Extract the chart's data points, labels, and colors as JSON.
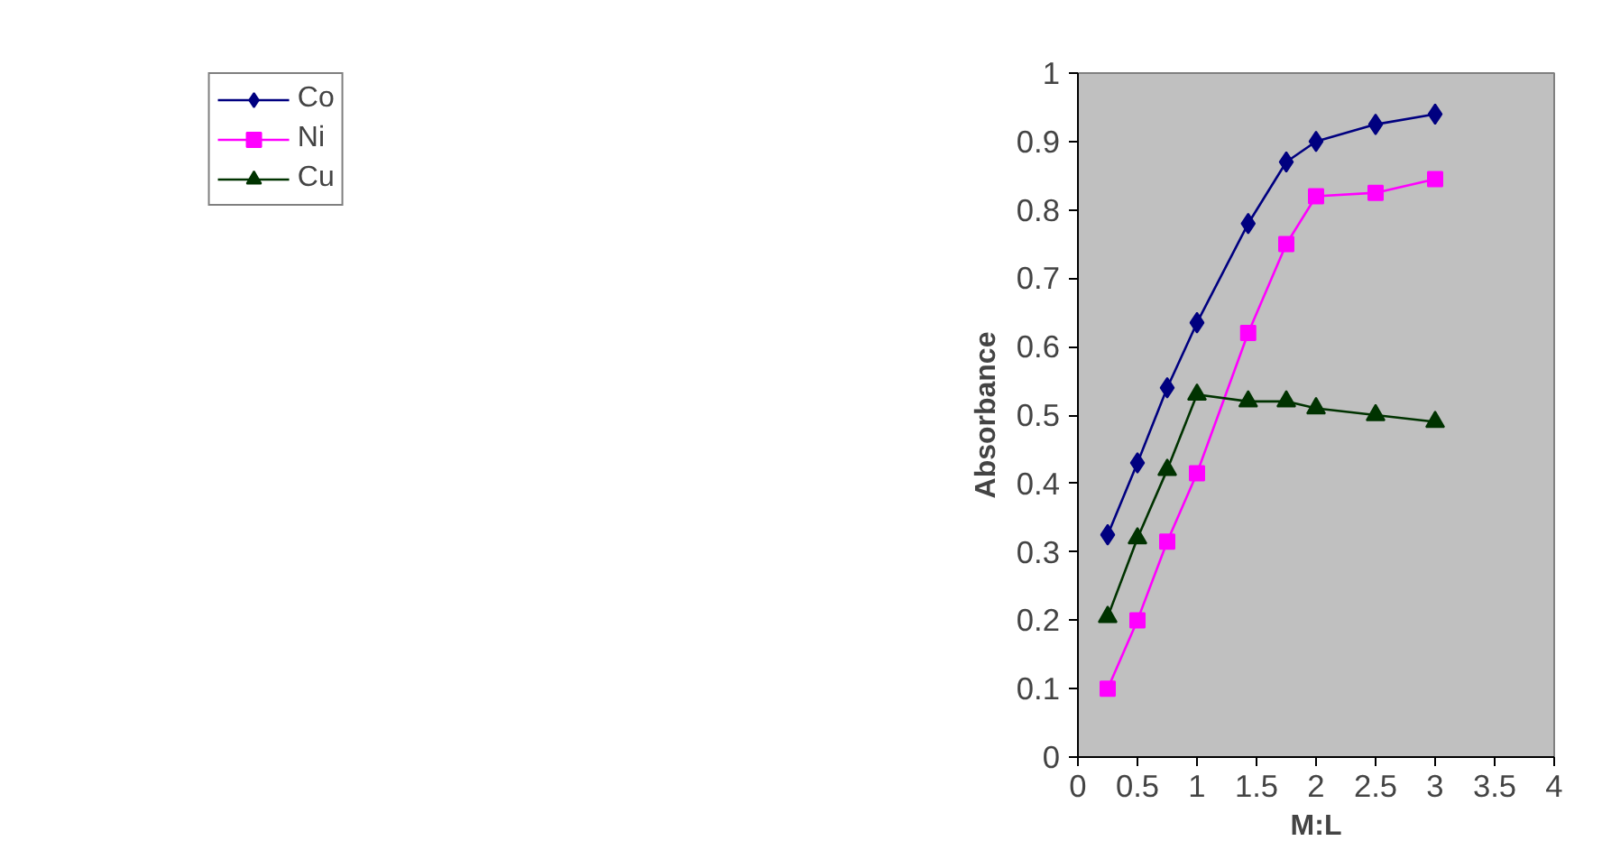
{
  "chart_data": {
    "type": "line",
    "xlabel": "M:L",
    "ylabel": "Absorbance",
    "x": [
      0.25,
      0.5,
      0.75,
      1,
      1.43,
      1.75,
      2,
      2.5,
      3
    ],
    "series": [
      {
        "name": "Co",
        "color": "#000080",
        "marker": "diamond",
        "values": [
          0.325,
          0.43,
          0.54,
          0.635,
          0.78,
          0.87,
          0.9,
          0.925,
          0.94
        ]
      },
      {
        "name": "Ni",
        "color": "#ff00ff",
        "marker": "square",
        "values": [
          0.1,
          0.2,
          0.315,
          0.415,
          0.62,
          0.75,
          0.82,
          0.825,
          0.845
        ]
      },
      {
        "name": "Cu",
        "color": "#003300",
        "marker": "triangle",
        "values": [
          0.205,
          0.32,
          0.42,
          0.53,
          0.52,
          0.52,
          0.51,
          0.5,
          0.49
        ]
      }
    ],
    "xlim": [
      0,
      4
    ],
    "xticks": [
      0,
      0.5,
      1,
      1.5,
      2,
      2.5,
      3,
      3.5,
      4
    ],
    "ylim": [
      0,
      1
    ],
    "yticks": [
      0,
      0.1,
      0.2,
      0.3,
      0.4,
      0.5,
      0.6,
      0.7,
      0.8,
      0.9,
      1
    ],
    "grid": false,
    "legend": "top left",
    "line_style": "solid"
  }
}
